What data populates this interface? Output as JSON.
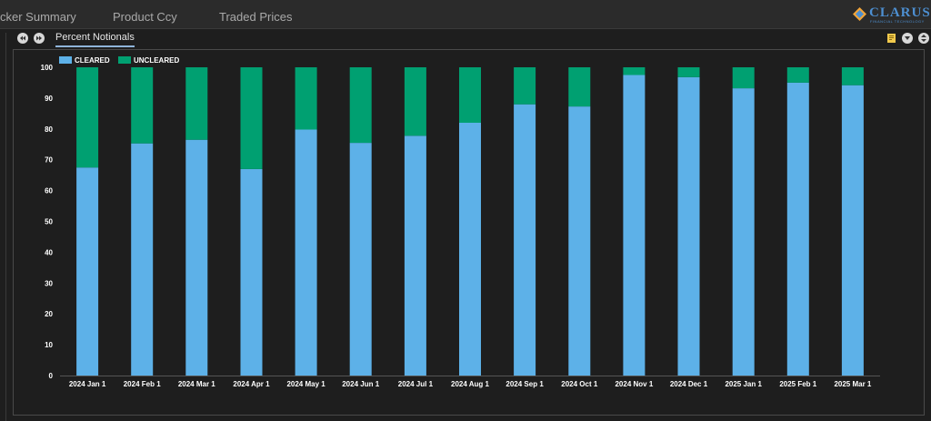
{
  "tabs": [
    {
      "label": "cker Summary"
    },
    {
      "label": "Product Ccy"
    },
    {
      "label": "Traded Prices"
    }
  ],
  "logo": {
    "text": "CLARUS",
    "sub": "FINANCIAL TECHNOLOGY"
  },
  "subtab": {
    "label": "Percent Notionals"
  },
  "colors": {
    "cleared": "#5db1e8",
    "uncleared": "#00a071",
    "accent": "#8fb4d9"
  },
  "chart_data": {
    "type": "bar",
    "stacked": true,
    "title": "",
    "xlabel": "",
    "ylabel": "",
    "ylim": [
      0,
      100
    ],
    "yticks": [
      0,
      10,
      20,
      30,
      40,
      50,
      60,
      70,
      80,
      90,
      100
    ],
    "grid": false,
    "legend_position": "top-left",
    "categories": [
      "2024 Jan 1",
      "2024 Feb 1",
      "2024 Mar 1",
      "2024 Apr 1",
      "2024 May 1",
      "2024 Jun 1",
      "2024 Jul 1",
      "2024 Aug 1",
      "2024 Sep 1",
      "2024 Oct 1",
      "2024 Nov 1",
      "2024 Dec 1",
      "2025 Jan 1",
      "2025 Feb 1",
      "2025 Mar 1"
    ],
    "series": [
      {
        "name": "CLEARED",
        "color": "#5db1e8",
        "values": [
          67.5,
          75.3,
          76.5,
          67,
          79.8,
          75.5,
          77.8,
          82,
          88,
          87.3,
          97.5,
          96.8,
          93.2,
          95,
          94.2
        ]
      },
      {
        "name": "UNCLEARED",
        "color": "#00a071",
        "values": [
          32.5,
          24.7,
          23.5,
          33,
          20.2,
          24.5,
          22.2,
          18,
          12,
          12.7,
          2.5,
          3.2,
          6.8,
          5,
          5.8
        ]
      }
    ]
  }
}
